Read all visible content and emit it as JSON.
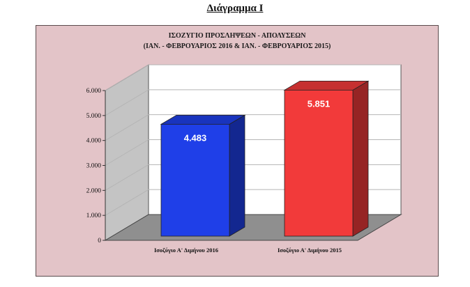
{
  "heading": "Διάγραμμα Ι",
  "chart_data": {
    "type": "bar",
    "title": "ΙΣΟΖΥΓΙΟ ΠΡΟΣΛΗΨΕΩΝ - ΑΠΟΛΥΣΕΩΝ",
    "subtitle": "(ΙΑΝ. - ΦΕΒΡΟΥΑΡΙΟΣ 2016 & ΙΑΝ. - ΦΕΒΡΟΥΑΡΙΟΣ 2015)",
    "categories": [
      "Ισοζύγιο Α' Διμήνου 2016",
      "Ισοζύγιο Α' Διμήνου 2015"
    ],
    "values": [
      4483,
      5851
    ],
    "value_labels": [
      "4.483",
      "5.851"
    ],
    "ylim": [
      0,
      6000
    ],
    "yticks": [
      0,
      1000,
      2000,
      3000,
      4000,
      5000,
      6000
    ],
    "ytick_labels": [
      "0",
      "1.000",
      "2.000",
      "3.000",
      "4.000",
      "5.000",
      "6.000"
    ],
    "bar_colors": [
      "#1f3fe8",
      "#f23a3a"
    ],
    "grid": true,
    "style": "3d"
  }
}
